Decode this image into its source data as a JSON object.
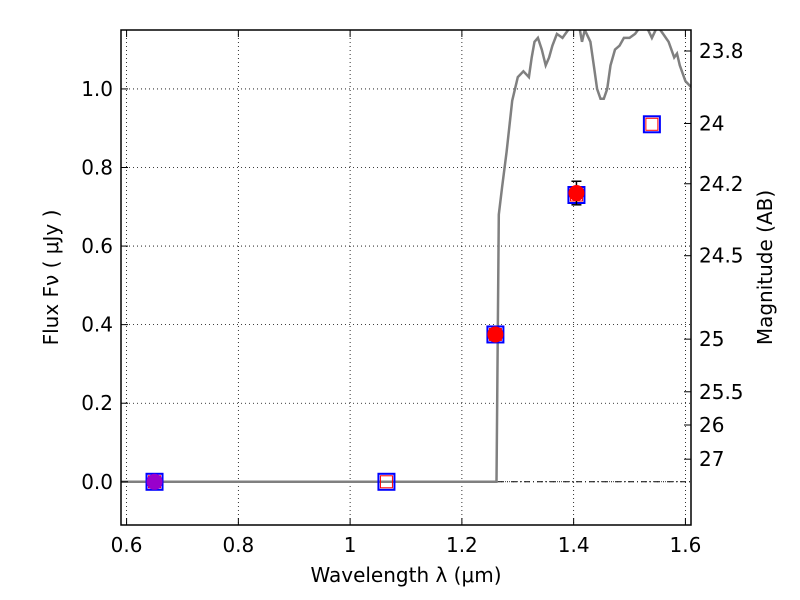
{
  "chart_data": {
    "type": "scatter",
    "xlabel": "Wavelength  λ (μm)",
    "ylabel": "Flux  Fν ( μJy )",
    "y2label": "Magnitude (AB)",
    "xlim": [
      0.59,
      1.61
    ],
    "ylim": [
      -0.11,
      1.15
    ],
    "grid": true,
    "x_ticks": [
      {
        "value": 0.6,
        "label": "0.6"
      },
      {
        "value": 0.8,
        "label": "0.8"
      },
      {
        "value": 1.0,
        "label": "1"
      },
      {
        "value": 1.2,
        "label": "1.2"
      },
      {
        "value": 1.4,
        "label": "1.4"
      },
      {
        "value": 1.6,
        "label": "1.6"
      }
    ],
    "y_ticks": [
      {
        "value": 0.0,
        "label": "0.0"
      },
      {
        "value": 0.2,
        "label": "0.2"
      },
      {
        "value": 0.4,
        "label": "0.4"
      },
      {
        "value": 0.6,
        "label": "0.6"
      },
      {
        "value": 0.8,
        "label": "0.8"
      },
      {
        "value": 1.0,
        "label": "1.0"
      }
    ],
    "y2_ticks": [
      {
        "mag": 23.8,
        "label": "23.8"
      },
      {
        "mag": 24,
        "label": "24"
      },
      {
        "mag": 24.2,
        "label": "24.2"
      },
      {
        "mag": 24.5,
        "label": "24.5"
      },
      {
        "mag": 25,
        "label": "25"
      },
      {
        "mag": 25.5,
        "label": "25.5"
      },
      {
        "mag": 26,
        "label": "26"
      },
      {
        "mag": 27,
        "label": "27"
      }
    ],
    "series": [
      {
        "kind": "line",
        "color": "#808080",
        "points": [
          [
            0.59,
            0.0
          ],
          [
            1.262,
            0.0
          ],
          [
            1.266,
            0.68
          ],
          [
            1.272,
            0.75
          ],
          [
            1.28,
            0.84
          ],
          [
            1.29,
            0.97
          ],
          [
            1.3,
            1.03
          ],
          [
            1.31,
            1.045
          ],
          [
            1.32,
            1.03
          ],
          [
            1.325,
            1.08
          ],
          [
            1.33,
            1.12
          ],
          [
            1.336,
            1.13
          ],
          [
            1.343,
            1.1
          ],
          [
            1.35,
            1.06
          ],
          [
            1.356,
            1.08
          ],
          [
            1.362,
            1.11
          ],
          [
            1.37,
            1.14
          ],
          [
            1.38,
            1.13
          ],
          [
            1.39,
            1.15
          ],
          [
            1.4,
            1.16
          ],
          [
            1.41,
            1.16
          ],
          [
            1.415,
            1.12
          ],
          [
            1.42,
            1.15
          ],
          [
            1.43,
            1.12
          ],
          [
            1.436,
            1.06
          ],
          [
            1.442,
            1.0
          ],
          [
            1.448,
            0.975
          ],
          [
            1.454,
            0.975
          ],
          [
            1.46,
            1.0
          ],
          [
            1.466,
            1.06
          ],
          [
            1.474,
            1.1
          ],
          [
            1.482,
            1.11
          ],
          [
            1.49,
            1.13
          ],
          [
            1.5,
            1.13
          ],
          [
            1.51,
            1.14
          ],
          [
            1.52,
            1.16
          ],
          [
            1.53,
            1.16
          ],
          [
            1.54,
            1.13
          ],
          [
            1.55,
            1.16
          ],
          [
            1.56,
            1.14
          ],
          [
            1.57,
            1.12
          ],
          [
            1.575,
            1.1
          ],
          [
            1.58,
            1.08
          ],
          [
            1.585,
            1.09
          ],
          [
            1.59,
            1.06
          ],
          [
            1.6,
            1.02
          ],
          [
            1.61,
            1.005
          ]
        ]
      },
      {
        "kind": "squares",
        "color": "#0000ff",
        "points": [
          [
            0.65,
            0.0
          ],
          [
            1.065,
            0.0
          ],
          [
            1.26,
            0.375
          ],
          [
            1.405,
            0.73
          ],
          [
            1.54,
            0.91
          ]
        ]
      },
      {
        "kind": "inner-squares",
        "color": "#ff0000",
        "points": [
          [
            0.65,
            0.0
          ],
          [
            1.065,
            0.0
          ],
          [
            1.26,
            0.375
          ],
          [
            1.405,
            0.73
          ],
          [
            1.54,
            0.91
          ]
        ]
      },
      {
        "kind": "circles",
        "color": "#ff0000",
        "points": [
          [
            1.26,
            0.375
          ],
          [
            1.405,
            0.735
          ]
        ],
        "errors": [
          0.01,
          0.03
        ]
      },
      {
        "kind": "circles",
        "color": "#9900cc",
        "points": [
          [
            0.65,
            0.0
          ]
        ],
        "errors": [
          0.005
        ]
      }
    ]
  }
}
